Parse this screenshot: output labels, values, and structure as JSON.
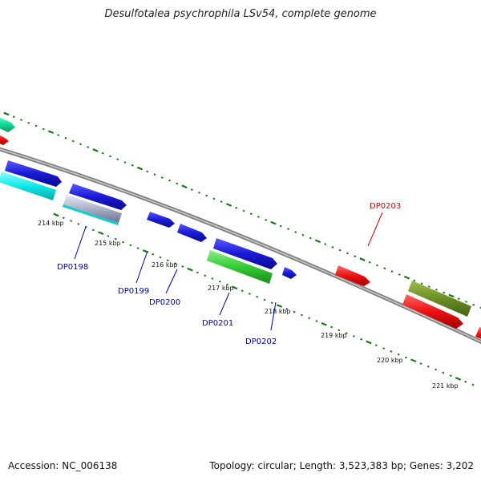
{
  "title": "Desulfotalea psychrophila LSv54, complete genome",
  "footer": {
    "accession": "Accession: NC_006138",
    "summary": "Topology: circular; Length: 3,523,383 bp; Genes: 3,202"
  },
  "ticks": [
    {
      "label": "214 kbp"
    },
    {
      "label": "215 kbp"
    },
    {
      "label": "216 kbp"
    },
    {
      "label": "217 kbp"
    },
    {
      "label": "218 kbp"
    },
    {
      "label": "219 kbp"
    },
    {
      "label": "220 kbp"
    },
    {
      "label": "221 kbp"
    }
  ],
  "gene_labels": [
    {
      "id": "DP0198",
      "color": "#0000aa"
    },
    {
      "id": "DP0199",
      "color": "#0000aa"
    },
    {
      "id": "DP0200",
      "color": "#0000aa"
    },
    {
      "id": "DP0201",
      "color": "#0000aa"
    },
    {
      "id": "DP0202",
      "color": "#0000aa"
    },
    {
      "id": "DP0203",
      "color": "#cc0000"
    }
  ],
  "colors": {
    "backbone": "#8a8a8a",
    "tick": "#1a7a1a",
    "blue_feature": "#1a1ad6",
    "red_feature": "#ee1111",
    "green_feature": "#33cc33",
    "olive_feature": "#6b8e23",
    "cyan_feature": "#11e8e8",
    "teal_feature": "#11dd99",
    "gray_feature": "#aab0c8"
  }
}
